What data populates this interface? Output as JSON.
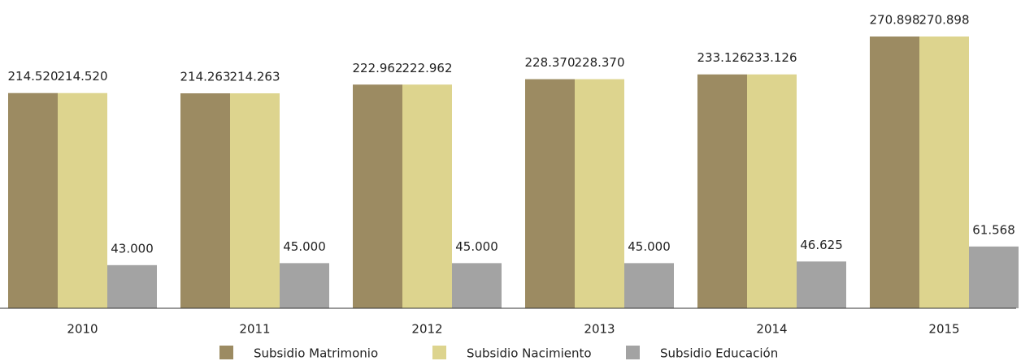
{
  "chart_data": {
    "type": "bar",
    "categories": [
      "2010",
      "2011",
      "2012",
      "2013",
      "2014",
      "2015"
    ],
    "series": [
      {
        "name": "Subsidio Matrimonio",
        "color": "#9c8b62",
        "values": [
          214520,
          214263,
          222962,
          228370,
          233126,
          270898
        ],
        "value_labels": [
          "214.520",
          "214.263",
          "222.962",
          "228.370",
          "233.126",
          "270.898"
        ]
      },
      {
        "name": "Subsidio Nacimiento",
        "color": "#ddd48e",
        "values": [
          214520,
          214263,
          222962,
          228370,
          233126,
          270898
        ],
        "value_labels": [
          "214.520",
          "214.263",
          "222.962",
          "228.370",
          "233.126",
          "270.898"
        ]
      },
      {
        "name": "Subsidio Educación",
        "color": "#a3a3a3",
        "values": [
          43000,
          45000,
          45000,
          45000,
          46625,
          61568
        ],
        "value_labels": [
          "43.000",
          "45.000",
          "45.000",
          "45.000",
          "46.625",
          "61.568"
        ]
      }
    ]
  }
}
